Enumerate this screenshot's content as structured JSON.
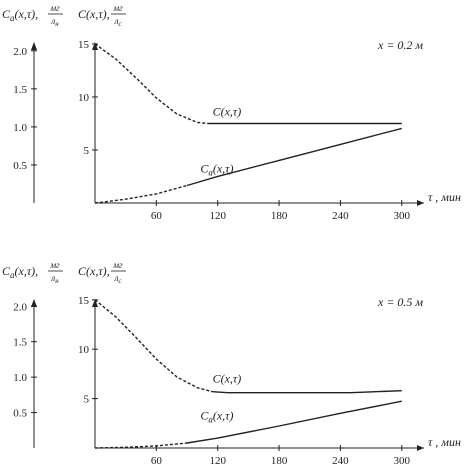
{
  "chart_data": [
    {
      "type": "line",
      "annotation": "x = 0.2 м",
      "left_axis": {
        "label": "C_a(x,τ),",
        "unit_num": "мг",
        "unit_den": "л_н",
        "ticks": [
          "0.5",
          "1.0",
          "1.5",
          "2.0"
        ],
        "ylim": [
          0,
          2.3
        ]
      },
      "right_axis": {
        "label": "C(x,τ),",
        "unit_num": "мг",
        "unit_den": "л_с",
        "ticks": [
          "5",
          "10",
          "15"
        ],
        "ylim": [
          0,
          16.5
        ]
      },
      "x_axis": {
        "label": "τ , мин",
        "ticks": [
          "60",
          "120",
          "180",
          "240",
          "300"
        ],
        "xlim": [
          0,
          310
        ]
      },
      "series": [
        {
          "name": "C(x,τ)",
          "axis": "right",
          "x": [
            0,
            20,
            40,
            60,
            80,
            100,
            110,
            120,
            150,
            200,
            250,
            300
          ],
          "y": [
            15,
            13.6,
            11.8,
            9.9,
            8.4,
            7.6,
            7.5,
            7.5,
            7.5,
            7.5,
            7.5,
            7.5
          ],
          "dashed_until": 110
        },
        {
          "name": "C_a(x,τ)",
          "axis": "left",
          "x": [
            0,
            30,
            60,
            90,
            120,
            180,
            240,
            300
          ],
          "y": [
            0,
            0.05,
            0.12,
            0.23,
            0.35,
            0.56,
            0.77,
            0.98
          ],
          "dashed_until": 90
        }
      ]
    },
    {
      "type": "line",
      "annotation": "x = 0.5 м",
      "left_axis": {
        "label": "C_a(x,τ),",
        "unit_num": "мг",
        "unit_den": "л_н",
        "ticks": [
          "0.5",
          "1.0",
          "1.5",
          "2.0"
        ],
        "ylim": [
          0,
          2.3
        ]
      },
      "right_axis": {
        "label": "C(x,τ),",
        "unit_num": "мг",
        "unit_den": "л_с",
        "ticks": [
          "5",
          "10",
          "15"
        ],
        "ylim": [
          0,
          16.5
        ]
      },
      "x_axis": {
        "label": "τ , мин",
        "ticks": [
          "60",
          "120",
          "180",
          "240",
          "300"
        ],
        "xlim": [
          0,
          310
        ]
      },
      "series": [
        {
          "name": "C(x,τ)",
          "axis": "right",
          "x": [
            0,
            20,
            40,
            60,
            80,
            100,
            115,
            130,
            200,
            250,
            300
          ],
          "y": [
            15,
            13.3,
            11.2,
            9.0,
            7.2,
            6.1,
            5.7,
            5.6,
            5.6,
            5.6,
            5.8
          ],
          "dashed_until": 115
        },
        {
          "name": "C_a(x,τ)",
          "axis": "left",
          "x": [
            0,
            30,
            60,
            90,
            120,
            180,
            240,
            300
          ],
          "y": [
            0,
            0.01,
            0.03,
            0.07,
            0.14,
            0.31,
            0.49,
            0.66
          ],
          "dashed_until": 90
        }
      ]
    }
  ]
}
